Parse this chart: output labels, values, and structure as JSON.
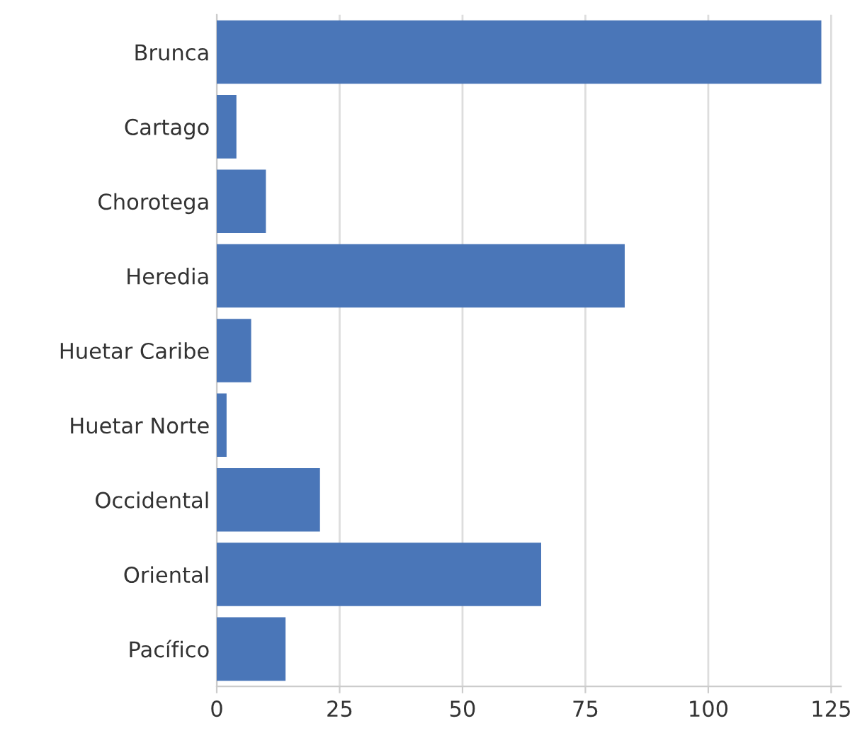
{
  "chart_data": {
    "type": "bar",
    "orientation": "horizontal",
    "categories": [
      "Brunca",
      "Cartago",
      "Chorotega",
      "Heredia",
      "Huetar Caribe",
      "Huetar Norte",
      "Occidental",
      "Oriental",
      "Pacífico"
    ],
    "values": [
      123,
      4,
      10,
      83,
      7,
      2,
      21,
      66,
      14
    ],
    "color": "#4a76b8",
    "xlim": [
      0,
      127
    ],
    "xticks": [
      0,
      25,
      50,
      75,
      100,
      125
    ],
    "grid": "x"
  }
}
